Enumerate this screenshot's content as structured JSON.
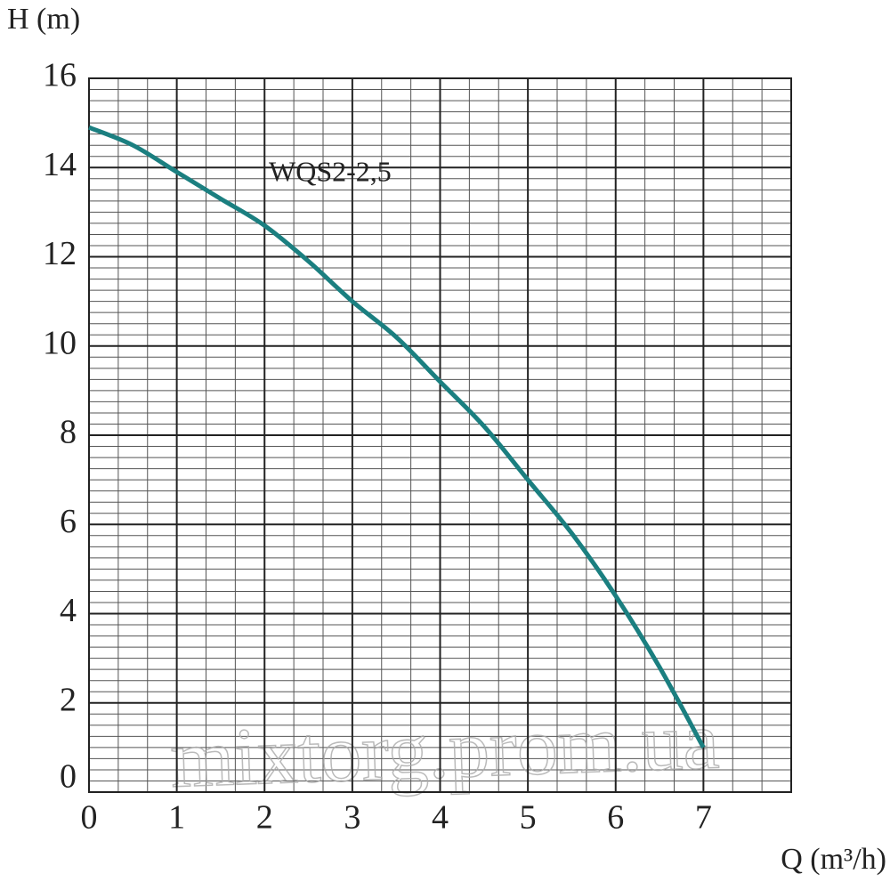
{
  "chart_data": {
    "type": "line",
    "y_label": "H (m)",
    "x_label": "Q (m³/h)",
    "annotation": "WQS2-2,5",
    "watermark": "mixtorg.prom.ua",
    "xlim": [
      0,
      8
    ],
    "xticks": [
      0,
      1,
      2,
      3,
      4,
      5,
      6,
      7
    ],
    "ylim": [
      0,
      16
    ],
    "yticks": [
      0,
      2,
      4,
      6,
      8,
      10,
      12,
      14,
      16
    ],
    "grid": true,
    "x": [
      0,
      0.5,
      1,
      1.5,
      2,
      2.5,
      3,
      3.5,
      4,
      4.5,
      5,
      5.5,
      6,
      6.5,
      7
    ],
    "series": [
      {
        "name": "WQS2-2,5",
        "color": "#1b7f80",
        "values": [
          14.9,
          14.5,
          13.9,
          13.3,
          12.7,
          11.9,
          11.0,
          10.2,
          9.2,
          8.2,
          7.0,
          5.8,
          4.4,
          2.8,
          1.0
        ]
      }
    ]
  }
}
